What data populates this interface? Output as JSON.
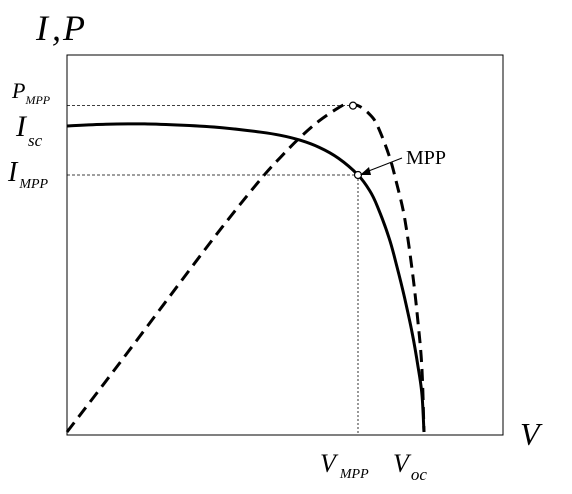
{
  "chart_data": {
    "type": "line",
    "axis_labels": {
      "y_main": "I",
      "y_sep": ",",
      "y_second": "P",
      "x": "V"
    },
    "tick_labels": {
      "p_mpp": {
        "main": "P",
        "sub": "MPP"
      },
      "i_sc": {
        "main": "I",
        "sub": "sc"
      },
      "i_mpp": {
        "main": "I",
        "sub": "MPP"
      },
      "v_mpp": {
        "main": "V",
        "sub": "MPP"
      },
      "v_oc": {
        "main": "V",
        "sub": "oc"
      }
    },
    "annotation": "MPP",
    "xlim": [
      0,
      1
    ],
    "ylim": [
      0,
      1
    ],
    "grid": false,
    "series": [
      {
        "style": "solid",
        "x": [
          0,
          0.1,
          0.2,
          0.3,
          0.4,
          0.5,
          0.55,
          0.6,
          0.65,
          0.7,
          0.75,
          0.78,
          0.8,
          0.83,
          0.85,
          0.87,
          0.89,
          0.905,
          0.915,
          0.92
        ],
        "y": [
          0.887,
          0.892,
          0.893,
          0.889,
          0.882,
          0.869,
          0.86,
          0.846,
          0.825,
          0.793,
          0.745,
          0.7,
          0.654,
          0.563,
          0.481,
          0.389,
          0.285,
          0.188,
          0.107,
          0.0
        ]
      },
      {
        "style": "dashed",
        "x": [
          0,
          0.1,
          0.2,
          0.3,
          0.4,
          0.5,
          0.55,
          0.6,
          0.65,
          0.7,
          0.72,
          0.75,
          0.78,
          0.8,
          0.83,
          0.85,
          0.87,
          0.89,
          0.905,
          0.915,
          0.92
        ],
        "y": [
          0.0,
          0.147,
          0.296,
          0.446,
          0.594,
          0.734,
          0.796,
          0.853,
          0.902,
          0.94,
          0.949,
          0.946,
          0.921,
          0.888,
          0.802,
          0.719,
          0.621,
          0.466,
          0.315,
          0.179,
          0.0
        ]
      }
    ],
    "mpp": {
      "v": 0.75,
      "i": 0.745,
      "p": 0.946
    }
  }
}
